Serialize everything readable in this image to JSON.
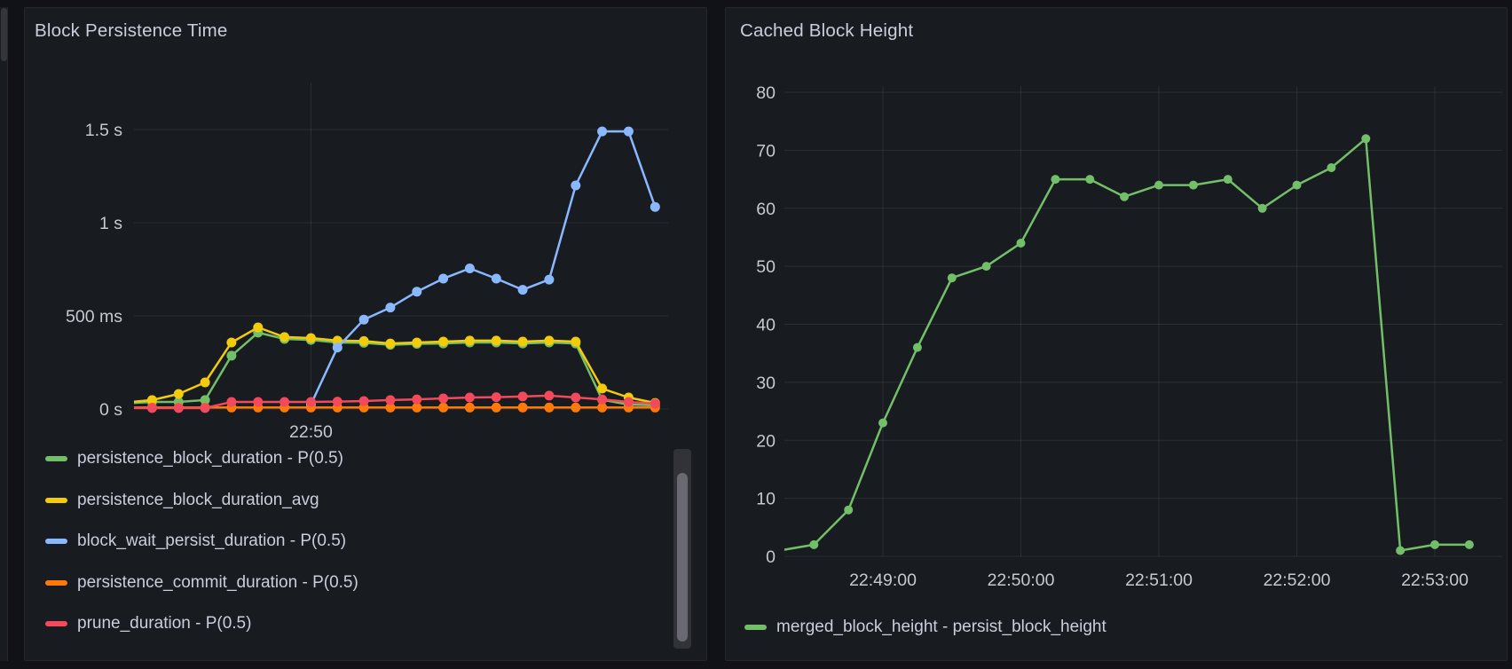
{
  "page": {
    "background": "#111217",
    "panel_background": "#181b1f",
    "text_color": "#ccccdc"
  },
  "panels": {
    "left": {
      "title": "Block Persistence Time"
    },
    "right": {
      "title": "Cached Block Height"
    }
  },
  "chart_data": [
    {
      "type": "line",
      "panel": "left",
      "title": "Block Persistence Time",
      "legend_position": "bottom",
      "grid": true,
      "ylim_ms": [
        0,
        1750
      ],
      "x_times": [
        "22:48:15",
        "22:48:30",
        "22:48:45",
        "22:49:00",
        "22:49:15",
        "22:49:30",
        "22:49:45",
        "22:50:00",
        "22:50:15",
        "22:50:30",
        "22:50:45",
        "22:51:00",
        "22:51:15",
        "22:51:30",
        "22:51:45",
        "22:52:00",
        "22:52:15",
        "22:52:30",
        "22:52:45",
        "22:53:00",
        "22:53:15"
      ],
      "x_ticks": [
        {
          "label": "22:50",
          "time": "22:50:00"
        }
      ],
      "y_ticks": [
        {
          "label": "1.5 s",
          "value": 1500
        },
        {
          "label": "1 s",
          "value": 1000
        },
        {
          "label": "500 ms",
          "value": 500
        },
        {
          "label": "0 s",
          "value": 0
        }
      ],
      "series": [
        {
          "name": "persistence_block_duration - P(0.5)",
          "color": "#73BF69",
          "values": [
            30,
            38,
            38,
            48,
            286,
            410,
            376,
            371,
            357,
            355,
            345,
            350,
            352,
            357,
            357,
            352,
            357,
            352,
            50,
            24,
            20
          ]
        },
        {
          "name": "persistence_block_duration_avg",
          "color": "#F2CC0C",
          "values": [
            35,
            48,
            81,
            143,
            357,
            438,
            386,
            381,
            367,
            365,
            352,
            357,
            362,
            367,
            367,
            362,
            367,
            362,
            110,
            62,
            33
          ]
        },
        {
          "name": "block_wait_persist_duration - P(0.5)",
          "color": "#8AB8FF",
          "values": [
            null,
            null,
            null,
            null,
            null,
            null,
            null,
            25,
            330,
            480,
            545,
            630,
            700,
            755,
            700,
            640,
            695,
            1200,
            1490,
            1490,
            1085
          ]
        },
        {
          "name": "persistence_commit_duration - P(0.5)",
          "color": "#FF780A",
          "values": [
            8,
            8,
            8,
            8,
            8,
            8,
            8,
            8,
            8,
            8,
            8,
            8,
            8,
            8,
            8,
            8,
            8,
            8,
            8,
            8,
            8
          ]
        },
        {
          "name": "prune_duration - P(0.5)",
          "color": "#F2495C",
          "values": [
            5,
            5,
            5,
            5,
            38,
            38,
            38,
            38,
            40,
            43,
            48,
            52,
            57,
            62,
            64,
            67,
            72,
            62,
            52,
            38,
            29
          ]
        }
      ]
    },
    {
      "type": "line",
      "panel": "right",
      "title": "Cached Block Height",
      "legend_position": "bottom",
      "grid": true,
      "ylim": [
        0,
        80
      ],
      "x_times": [
        "22:48:15",
        "22:48:30",
        "22:48:45",
        "22:49:00",
        "22:49:15",
        "22:49:30",
        "22:49:45",
        "22:50:00",
        "22:50:15",
        "22:50:30",
        "22:50:45",
        "22:51:00",
        "22:51:15",
        "22:51:30",
        "22:51:45",
        "22:52:00",
        "22:52:15",
        "22:52:30",
        "22:52:45",
        "22:53:00",
        "22:53:15"
      ],
      "x_ticks": [
        {
          "label": "22:49:00",
          "time": "22:49:00"
        },
        {
          "label": "22:50:00",
          "time": "22:50:00"
        },
        {
          "label": "22:51:00",
          "time": "22:51:00"
        },
        {
          "label": "22:52:00",
          "time": "22:52:00"
        },
        {
          "label": "22:53:00",
          "time": "22:53:00"
        }
      ],
      "y_ticks": [
        {
          "label": "80",
          "value": 80
        },
        {
          "label": "70",
          "value": 70
        },
        {
          "label": "60",
          "value": 60
        },
        {
          "label": "50",
          "value": 50
        },
        {
          "label": "40",
          "value": 40
        },
        {
          "label": "30",
          "value": 30
        },
        {
          "label": "20",
          "value": 20
        },
        {
          "label": "10",
          "value": 10
        },
        {
          "label": "0",
          "value": 0
        }
      ],
      "series": [
        {
          "name": "merged_block_height - persist_block_height",
          "color": "#73BF69",
          "values": [
            1,
            2,
            8,
            23,
            36,
            48,
            50,
            54,
            65,
            65,
            62,
            64,
            64,
            65,
            60,
            64,
            67,
            72,
            1,
            2,
            2
          ]
        }
      ]
    }
  ]
}
